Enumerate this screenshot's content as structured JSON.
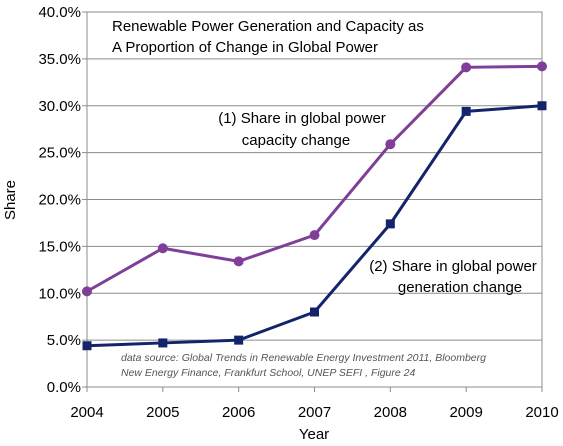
{
  "chart_data": {
    "type": "line",
    "title_lines": [
      "Renewable Power Generation and Capacity as",
      "A Proportion of Change in Global Power"
    ],
    "xlabel": "Year",
    "ylabel": "Share",
    "x": [
      2004,
      2005,
      2006,
      2007,
      2008,
      2009,
      2010
    ],
    "x_tick_labels": [
      "2004",
      "2005",
      "2006",
      "2007",
      "2008",
      "2009",
      "2010"
    ],
    "ylim": [
      0,
      40
    ],
    "y_ticks": [
      0,
      5,
      10,
      15,
      20,
      25,
      30,
      35,
      40
    ],
    "y_tick_labels": [
      "0.0%",
      "5.0%",
      "10.0%",
      "15.0%",
      "20.0%",
      "25.0%",
      "30.0%",
      "35.0%",
      "40.0%"
    ],
    "grid": "horizontal",
    "legend": "none",
    "series": [
      {
        "key": "capacity",
        "values": [
          10.2,
          14.8,
          13.4,
          16.2,
          25.9,
          34.1,
          34.2
        ],
        "color": "#7f3f98",
        "marker": "circle"
      },
      {
        "key": "generation",
        "values": [
          4.4,
          4.7,
          5.0,
          8.0,
          17.4,
          29.4,
          30.0
        ],
        "color": "#14246b",
        "marker": "square"
      }
    ],
    "annotations": [
      {
        "series": "capacity",
        "lines": [
          "(1) Share in global power",
          "capacity change"
        ]
      },
      {
        "series": "generation",
        "lines": [
          "(2) Share in global power",
          "generation change"
        ]
      }
    ],
    "source_note_lines": [
      "data source: Global Trends in Renewable Energy Investment 2011, Bloomberg",
      "New Energy Finance, Frankfurt School, UNEP SEFI , Figure 24"
    ]
  }
}
